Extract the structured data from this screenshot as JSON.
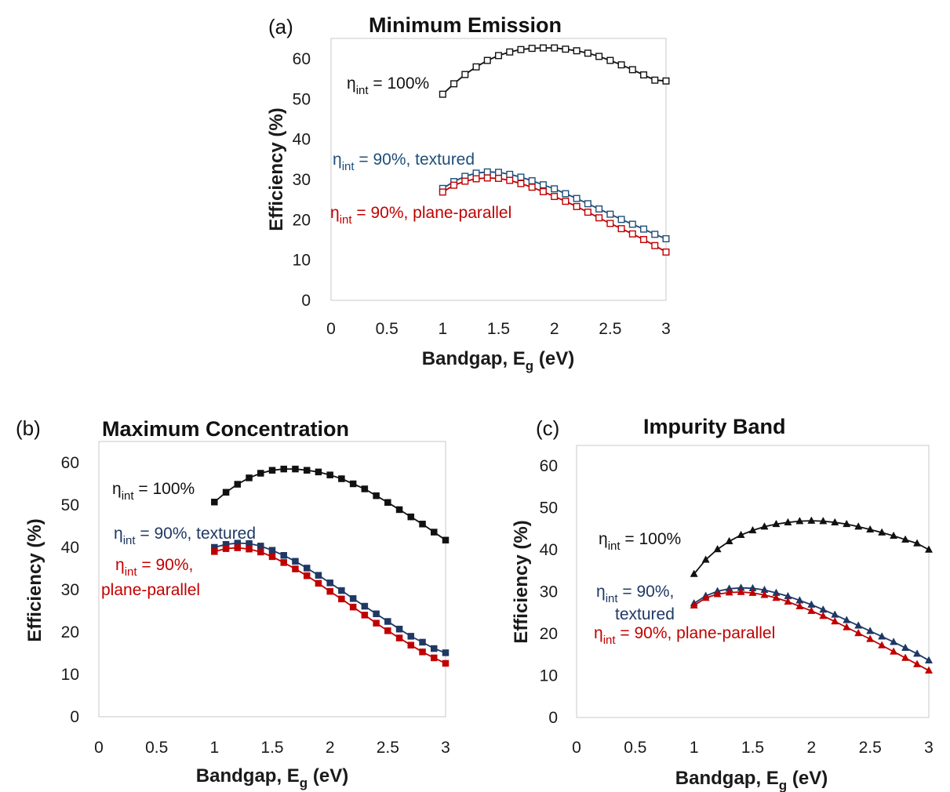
{
  "chart_data": [
    {
      "type": "line",
      "panel_label": "(a)",
      "title": "Minimum Emission",
      "xlabel": "Bandgap, E",
      "xlabel_sub": "g",
      "xlabel_unit": " (eV)",
      "ylabel": "Efficiency (%)",
      "xlim": [
        0,
        3
      ],
      "ylim": [
        0,
        65
      ],
      "x_ticks": [
        "0",
        "0.5",
        "1",
        "1.5",
        "2",
        "2.5",
        "3"
      ],
      "y_ticks": [
        "0",
        "10",
        "20",
        "30",
        "40",
        "50",
        "60"
      ],
      "marker": "open-square",
      "x": [
        1.0,
        1.1,
        1.2,
        1.3,
        1.4,
        1.5,
        1.6,
        1.7,
        1.8,
        1.9,
        2.0,
        2.1,
        2.2,
        2.3,
        2.4,
        2.5,
        2.6,
        2.7,
        2.8,
        2.9,
        3.0
      ],
      "series": [
        {
          "name": "100",
          "color": "#111111",
          "values": [
            51.2,
            53.8,
            56.1,
            58.0,
            59.6,
            60.8,
            61.7,
            62.3,
            62.6,
            62.7,
            62.7,
            62.4,
            62.0,
            61.4,
            60.6,
            59.6,
            58.5,
            57.3,
            56.0,
            54.7,
            54.5
          ]
        },
        {
          "name": "90t",
          "color": "#1f4e79",
          "values": [
            27.8,
            29.5,
            30.8,
            31.6,
            31.9,
            31.8,
            31.3,
            30.6,
            29.7,
            28.7,
            27.7,
            26.5,
            25.3,
            24.0,
            22.7,
            21.4,
            20.1,
            18.9,
            17.7,
            16.4,
            15.3
          ]
        },
        {
          "name": "90p",
          "color": "#c00000",
          "values": [
            26.9,
            28.6,
            29.6,
            30.2,
            30.4,
            30.3,
            29.8,
            29.0,
            28.1,
            27.0,
            25.8,
            24.6,
            23.3,
            21.9,
            20.5,
            19.1,
            17.8,
            16.5,
            15.1,
            13.6,
            12.0
          ]
        }
      ],
      "annotations": [
        {
          "prefix": "η",
          "sub": "int",
          "text": " = 100%",
          "color": "#111111"
        },
        {
          "prefix": "η",
          "sub": "int",
          "text": " = 90%, textured",
          "color": "#1f4e79"
        },
        {
          "prefix": "η",
          "sub": "int",
          "text": " = 90%, plane-parallel",
          "color": "#c00000"
        }
      ]
    },
    {
      "type": "line",
      "panel_label": "(b)",
      "title": "Maximum Concentration",
      "xlabel": "Bandgap, E",
      "xlabel_sub": "g",
      "xlabel_unit": " (eV)",
      "ylabel": "Efficiency (%)",
      "xlim": [
        0,
        3
      ],
      "ylim": [
        0,
        65
      ],
      "x_ticks": [
        "0",
        "0.5",
        "1",
        "1.5",
        "2",
        "2.5",
        "3"
      ],
      "y_ticks": [
        "0",
        "10",
        "20",
        "30",
        "40",
        "50",
        "60"
      ],
      "marker": "filled-square",
      "x": [
        1.0,
        1.1,
        1.2,
        1.3,
        1.4,
        1.5,
        1.6,
        1.7,
        1.8,
        1.9,
        2.0,
        2.1,
        2.2,
        2.3,
        2.4,
        2.5,
        2.6,
        2.7,
        2.8,
        2.9,
        3.0
      ],
      "series": [
        {
          "name": "100",
          "color": "#111111",
          "values": [
            50.7,
            53.0,
            54.9,
            56.4,
            57.5,
            58.2,
            58.5,
            58.5,
            58.2,
            57.8,
            57.1,
            56.2,
            55.0,
            53.8,
            52.2,
            50.6,
            48.9,
            47.2,
            45.5,
            43.6,
            41.7
          ]
        },
        {
          "name": "90t",
          "color": "#1f3864",
          "values": [
            40.0,
            40.7,
            41.0,
            40.9,
            40.3,
            39.3,
            38.1,
            36.7,
            35.1,
            33.4,
            31.6,
            29.8,
            27.9,
            26.1,
            24.3,
            22.5,
            20.7,
            19.0,
            17.6,
            16.1,
            15.1
          ]
        },
        {
          "name": "90p",
          "color": "#c00000",
          "values": [
            39.0,
            39.7,
            39.9,
            39.6,
            38.9,
            37.8,
            36.4,
            34.9,
            33.3,
            31.5,
            29.6,
            27.8,
            25.9,
            24.0,
            22.1,
            20.3,
            18.6,
            16.9,
            15.3,
            13.9,
            12.6
          ]
        }
      ],
      "annotations": [
        {
          "prefix": "η",
          "sub": "int",
          "text": " = 100%",
          "color": "#111111"
        },
        {
          "prefix": "η",
          "sub": "int",
          "text": " = 90%, textured",
          "color": "#1f3864"
        },
        {
          "prefix": "η",
          "sub": "int",
          "text": " = 90%,",
          "text2": "plane-parallel",
          "color": "#c00000"
        }
      ]
    },
    {
      "type": "line",
      "panel_label": "(c)",
      "title": "Impurity Band",
      "xlabel": "Bandgap, E",
      "xlabel_sub": "g",
      "xlabel_unit": " (eV)",
      "ylabel": "Efficiency (%)",
      "xlim": [
        0,
        3
      ],
      "ylim": [
        0,
        65
      ],
      "x_ticks": [
        "0",
        "0.5",
        "1",
        "1.5",
        "2",
        "2.5",
        "3"
      ],
      "y_ticks": [
        "0",
        "10",
        "20",
        "30",
        "40",
        "50",
        "60"
      ],
      "marker": "filled-triangle",
      "x": [
        1.0,
        1.1,
        1.2,
        1.3,
        1.4,
        1.5,
        1.6,
        1.7,
        1.8,
        1.9,
        2.0,
        2.1,
        2.2,
        2.3,
        2.4,
        2.5,
        2.6,
        2.7,
        2.8,
        2.9,
        3.0
      ],
      "series": [
        {
          "name": "100",
          "color": "#111111",
          "values": [
            34.2,
            37.6,
            40.1,
            42.0,
            43.5,
            44.6,
            45.5,
            46.1,
            46.5,
            46.8,
            46.9,
            46.8,
            46.5,
            46.1,
            45.5,
            44.8,
            44.1,
            43.3,
            42.4,
            41.5,
            40.0
          ]
        },
        {
          "name": "90t",
          "color": "#1f3864",
          "values": [
            27.2,
            29.0,
            30.1,
            30.7,
            30.9,
            30.8,
            30.4,
            29.7,
            28.9,
            27.9,
            26.9,
            25.7,
            24.5,
            23.2,
            21.9,
            20.6,
            19.3,
            18.0,
            16.6,
            15.2,
            13.6
          ]
        },
        {
          "name": "90p",
          "color": "#c00000",
          "values": [
            26.7,
            28.5,
            29.4,
            29.8,
            29.9,
            29.7,
            29.2,
            28.5,
            27.6,
            26.5,
            25.4,
            24.2,
            22.9,
            21.5,
            20.1,
            18.7,
            17.2,
            15.7,
            14.2,
            12.7,
            11.2
          ]
        }
      ],
      "annotations": [
        {
          "prefix": "η",
          "sub": "int",
          "text": " = 100%",
          "color": "#111111"
        },
        {
          "prefix": "η",
          "sub": "int",
          "text": " = 90%,",
          "text2": "textured",
          "color": "#1f3864"
        },
        {
          "prefix": "η",
          "sub": "int",
          "text": " = 90%, plane-parallel",
          "color": "#c00000"
        }
      ]
    }
  ]
}
